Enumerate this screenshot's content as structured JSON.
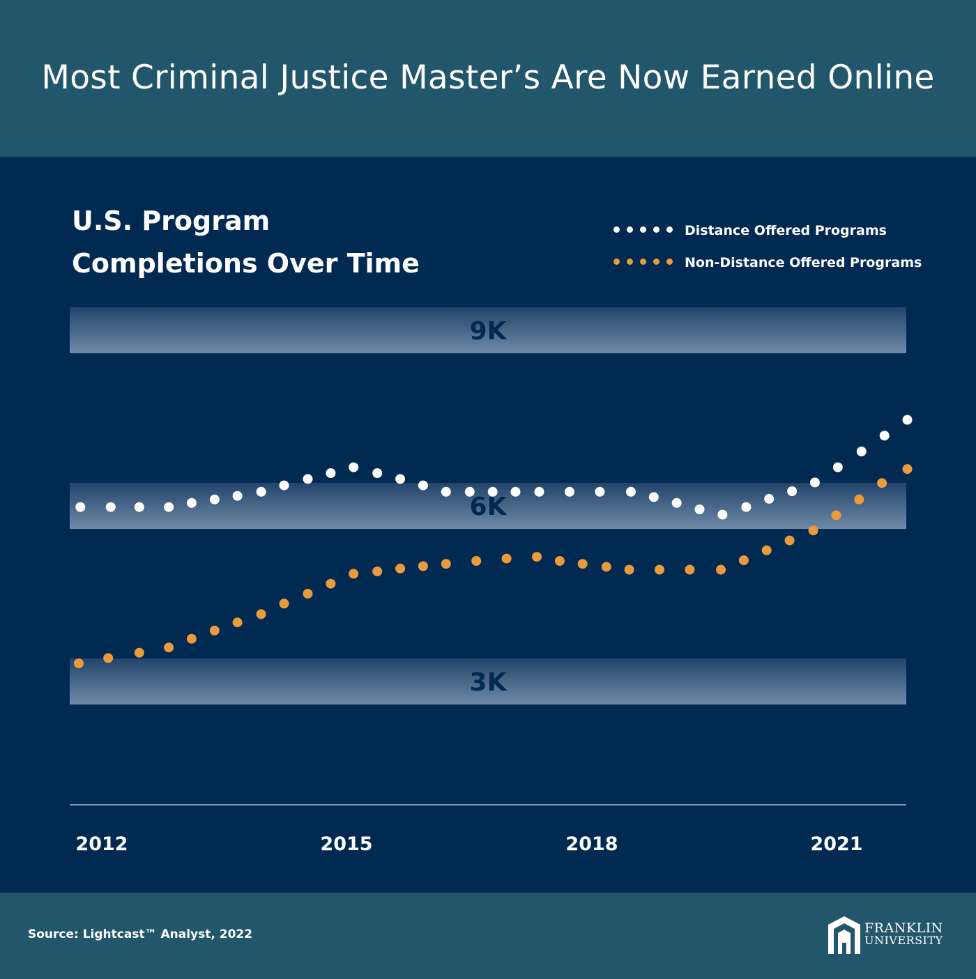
{
  "header": {
    "title": "Most Criminal Justice Master’s Are Now Earned Online"
  },
  "colors": {
    "header_bg": "#22576b",
    "main_bg": "#012a52",
    "distance": "#ffffff",
    "non_distance": "#eb9b3a",
    "band_label": "#012a52"
  },
  "chart_data": {
    "type": "scatter",
    "title": [
      "U.S. Program",
      "Completions Over Time"
    ],
    "x_tick_labels": [
      "2012",
      "2015",
      "2018",
      "2021"
    ],
    "y_tick_labels": [
      "9K",
      "6K",
      "3K"
    ],
    "x_range": [
      2011.7,
      2021.8
    ],
    "y_range": [
      3000,
      9000
    ],
    "legend_position": "top-right",
    "series": [
      {
        "name": "Distance Offered Programs",
        "color": "#ffffff",
        "x": [
          2011.72,
          2012.09,
          2012.44,
          2012.8,
          2013.08,
          2013.36,
          2013.64,
          2013.93,
          2014.21,
          2014.5,
          2014.78,
          2015.06,
          2015.35,
          2015.63,
          2015.91,
          2016.19,
          2016.48,
          2016.76,
          2017.04,
          2017.33,
          2017.7,
          2018.07,
          2018.45,
          2018.73,
          2019.01,
          2019.29,
          2019.57,
          2019.86,
          2020.14,
          2020.42,
          2020.7,
          2020.98,
          2021.27,
          2021.55,
          2021.83
        ],
        "y": [
          5980,
          5980,
          5980,
          5980,
          6050,
          6110,
          6170,
          6240,
          6350,
          6460,
          6560,
          6660,
          6560,
          6460,
          6350,
          6240,
          6240,
          6240,
          6240,
          6240,
          6240,
          6240,
          6240,
          6150,
          6050,
          5940,
          5850,
          5980,
          6120,
          6250,
          6400,
          6660,
          6930,
          7200,
          7470
        ]
      },
      {
        "name": "Non-Distance Offered Programs",
        "color": "#eb9b3a",
        "x": [
          2011.7,
          2012.06,
          2012.44,
          2012.8,
          2013.08,
          2013.36,
          2013.64,
          2013.93,
          2014.21,
          2014.5,
          2014.78,
          2015.06,
          2015.35,
          2015.63,
          2015.91,
          2016.19,
          2016.56,
          2016.93,
          2017.3,
          2017.58,
          2017.86,
          2018.15,
          2018.43,
          2018.8,
          2019.17,
          2019.55,
          2019.83,
          2020.11,
          2020.39,
          2020.68,
          2020.96,
          2021.24,
          2021.52,
          2021.83
        ],
        "y": [
          3310,
          3400,
          3490,
          3580,
          3730,
          3870,
          4010,
          4150,
          4330,
          4500,
          4670,
          4840,
          4880,
          4930,
          4970,
          5010,
          5060,
          5100,
          5130,
          5060,
          5010,
          4960,
          4910,
          4910,
          4910,
          4910,
          5070,
          5240,
          5410,
          5580,
          5840,
          6110,
          6390,
          6630
        ]
      }
    ]
  },
  "footer": {
    "source": "Source: Lightcast™ Analyst, 2022",
    "logo_line1": "FRANKLIN",
    "logo_line2": "UNIVERSITY"
  }
}
